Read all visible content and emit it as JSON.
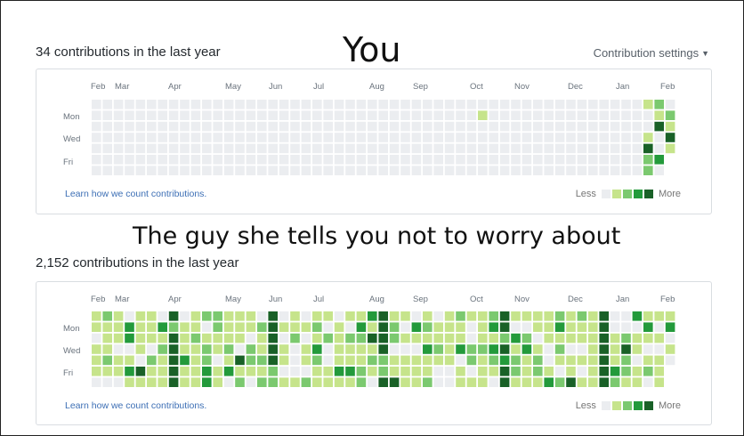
{
  "captions": {
    "top": "You",
    "middle": "The guy she tells you not to worry about"
  },
  "colors": {
    "levels": [
      "#ebedf0",
      "#c6e48b",
      "#7bc96f",
      "#239a3b",
      "#196127"
    ]
  },
  "panel_you": {
    "heading": "34 contributions in the last year",
    "settings_label": "Contribution settings",
    "months": [
      "Feb",
      "Mar",
      "Apr",
      "May",
      "Jun",
      "Jul",
      "Aug",
      "Sep",
      "Oct",
      "Nov",
      "Dec",
      "Jan",
      "Feb"
    ],
    "days": [
      "Mon",
      "Wed",
      "Fri"
    ],
    "learn_link": "Learn how we count contributions.",
    "legend_less": "Less",
    "legend_more": "More"
  },
  "panel_guy": {
    "heading": "2,152 contributions in the last year",
    "months": [
      "Feb",
      "Mar",
      "Apr",
      "May",
      "Jun",
      "Jul",
      "Aug",
      "Sep",
      "Oct",
      "Nov",
      "Dec",
      "Jan",
      "Feb"
    ],
    "days": [
      "Mon",
      "Wed",
      "Fri"
    ],
    "learn_link": "Learn how we count contributions.",
    "legend_less": "Less",
    "legend_more": "More"
  }
}
